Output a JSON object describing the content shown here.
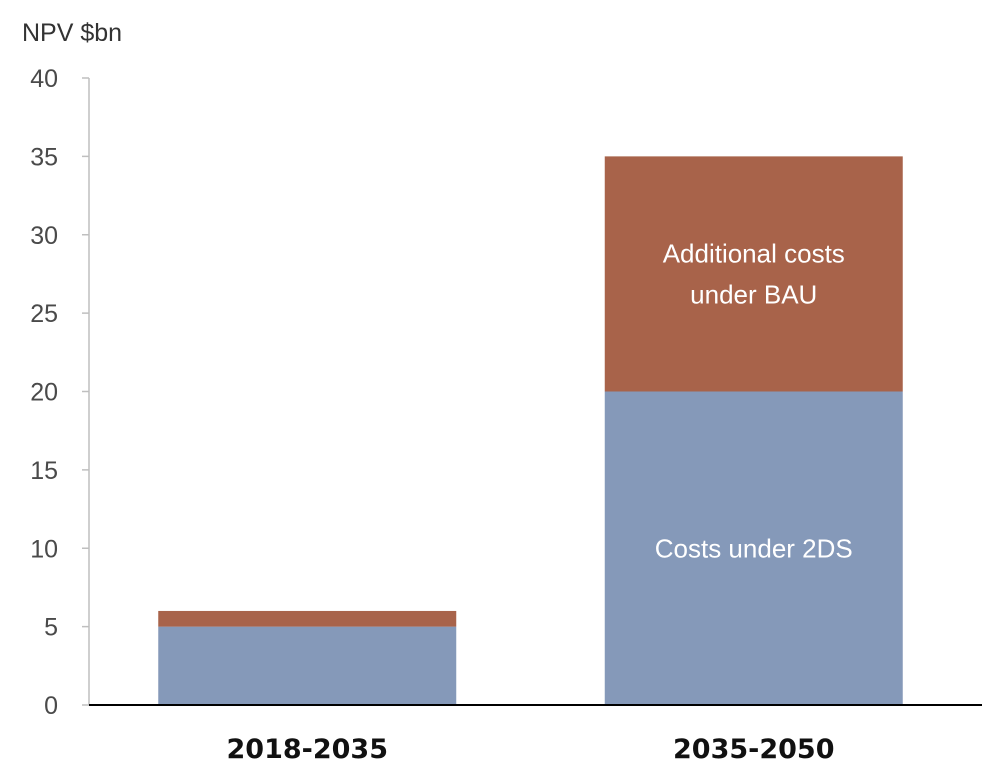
{
  "chart_data": {
    "type": "bar",
    "stacked": true,
    "ylabel": "NPV $bn",
    "ylim": [
      0,
      40
    ],
    "yticks": [
      0,
      5,
      10,
      15,
      20,
      25,
      30,
      35,
      40
    ],
    "grid": false,
    "categories": [
      "2018-2035",
      "2035-2050"
    ],
    "series": [
      {
        "name": "Costs under 2DS",
        "values": [
          5,
          20
        ],
        "color": "#8599b9"
      },
      {
        "name": "Additional costs under BAU",
        "values": [
          1,
          15
        ],
        "color": "#a8634a"
      }
    ],
    "annotations": [
      {
        "category": "2035-2050",
        "series": "Additional costs under BAU",
        "lines": [
          "Additional costs",
          "under BAU"
        ]
      },
      {
        "category": "2035-2050",
        "series": "Costs under 2DS",
        "lines": [
          "Costs under 2DS"
        ]
      }
    ]
  },
  "colors": {
    "axis": "#bfbfbf",
    "baseline": "#000000",
    "label_on_bar": "#ffffff"
  }
}
